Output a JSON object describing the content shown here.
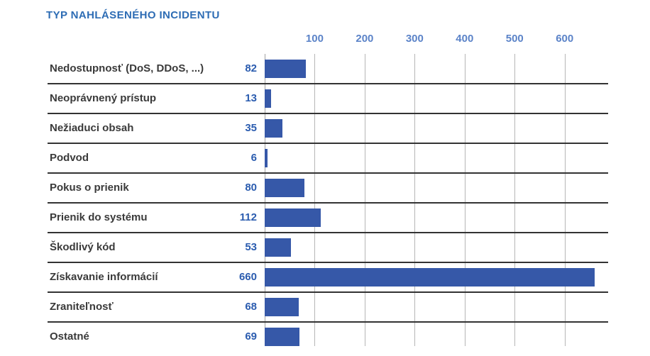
{
  "chart_data": {
    "type": "bar",
    "orientation": "horizontal",
    "title": "TYP NAHLÁSENÉHO INCIDENTU",
    "categories": [
      "Nedostupnosť (DoS, DDoS, ...)",
      "Neoprávnený prístup",
      "Nežiaduci obsah",
      "Podvod",
      "Pokus o prienik",
      "Prienik do systému",
      "Škodlivý kód",
      "Získavanie informácií",
      "Zraniteľnosť",
      "Ostatné"
    ],
    "values": [
      82,
      13,
      35,
      6,
      80,
      112,
      53,
      660,
      68,
      69
    ],
    "x_ticks": [
      100,
      200,
      300,
      400,
      500,
      600
    ],
    "xlim": [
      0,
      687
    ],
    "axis_position": "top",
    "grid": "vertical-gridlines",
    "value_label_position": "left-of-bar",
    "legend": "none",
    "colors": {
      "bar": "#3658a8",
      "title": "#2d6cb4",
      "tick_label": "#5b83c8",
      "value_label": "#2b5caf",
      "category_label": "#3a3a3a",
      "separator": "#333333",
      "gridline": "#b6b6b6",
      "baseline": "#a2a2a2",
      "background": "#ffffff"
    }
  }
}
